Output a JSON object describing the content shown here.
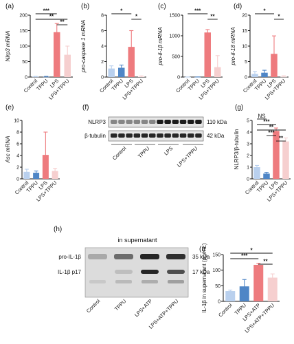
{
  "colors": {
    "control": "#b9d0ee",
    "tppu": "#4f86c6",
    "lps": "#ee7b7e",
    "lps_tppu": "#f6cfcf",
    "axis": "#111111"
  },
  "chart_data": [
    {
      "panel": "(a)",
      "type": "bar",
      "ylabel": "Nlrp3 mRNA",
      "categories": [
        "Control",
        "TPPU",
        "LPS",
        "LPS+TPPU"
      ],
      "values": [
        1,
        0.8,
        145,
        72
      ],
      "errors": [
        1.5,
        1.5,
        28,
        28
      ],
      "ylim": [
        0,
        200
      ],
      "yticks": [
        "0",
        "50",
        "100",
        "150",
        "200"
      ],
      "significance": [
        {
          "from": 0,
          "to": 2,
          "label": "***"
        },
        {
          "from": 0,
          "to": 3,
          "label": "**"
        },
        {
          "from": 2,
          "to": 3,
          "label": "**"
        }
      ]
    },
    {
      "panel": "(b)",
      "type": "bar",
      "ylabel": "pro-caspase 1 mRNA",
      "categories": [
        "Control",
        "TPPU",
        "LPS",
        "LPS+TPPU"
      ],
      "values": [
        1.1,
        1.2,
        3.9,
        0.05
      ],
      "errors": [
        0.35,
        0.35,
        2.1,
        0.1
      ],
      "ylim": [
        0,
        8
      ],
      "yticks": [
        "0",
        "2",
        "4",
        "6",
        "8"
      ],
      "significance": [
        {
          "from": 0,
          "to": 2,
          "label": "*"
        },
        {
          "from": 2,
          "to": 3,
          "label": "*"
        }
      ]
    },
    {
      "panel": "(c)",
      "type": "bar",
      "ylabel": "pro-il-1β mRNA",
      "categories": [
        "Control",
        "TPPU",
        "LPS",
        "LPS+TPPU"
      ],
      "values": [
        1,
        2,
        1080,
        240
      ],
      "errors": [
        2,
        2,
        70,
        280
      ],
      "ylim": [
        0,
        1500
      ],
      "yticks": [
        "0",
        "500",
        "1000",
        "1500"
      ],
      "significance": [
        {
          "from": 0,
          "to": 2,
          "label": "***"
        },
        {
          "from": 2,
          "to": 3,
          "label": "**"
        }
      ]
    },
    {
      "panel": "(d)",
      "type": "bar",
      "ylabel": "pro-il-18 mRNA",
      "categories": [
        "Control",
        "TPPU",
        "LPS",
        "LPS+TPPU"
      ],
      "values": [
        1,
        1.4,
        7.5,
        0.1
      ],
      "errors": [
        0.8,
        0.8,
        5.8,
        0.3
      ],
      "ylim": [
        0,
        20
      ],
      "yticks": [
        "0",
        "5",
        "10",
        "15",
        "20"
      ],
      "significance": [
        {
          "from": 0,
          "to": 2,
          "label": "*"
        },
        {
          "from": 2,
          "to": 3,
          "label": "*"
        }
      ]
    },
    {
      "panel": "(e)",
      "type": "bar",
      "ylabel": "Asc mRNA",
      "categories": [
        "Control",
        "TPPU",
        "LPS",
        "LPS+TPPU"
      ],
      "values": [
        1.2,
        1.05,
        4.1,
        1.35
      ],
      "errors": [
        0.45,
        0.3,
        3.9,
        0.45
      ],
      "ylim": [
        0,
        10
      ],
      "yticks": [
        "0",
        "2",
        "4",
        "6",
        "8",
        "10"
      ],
      "significance": []
    },
    {
      "panel": "(g)",
      "type": "bar",
      "ylabel": "NLRP3/β-tubulin",
      "categories": [
        "Control",
        "TPPU",
        "LPS",
        "LPS+TPPU"
      ],
      "values": [
        1.0,
        0.45,
        4.1,
        3.2
      ],
      "errors": [
        0.15,
        0.1,
        0.25,
        0.3
      ],
      "ylim": [
        0,
        5
      ],
      "yticks": [
        "0",
        "1",
        "2",
        "3",
        "4",
        "5"
      ],
      "significance": [
        {
          "from": 0,
          "to": 1,
          "label": "NS"
        },
        {
          "from": 0,
          "to": 2,
          "label": "***"
        },
        {
          "from": 0,
          "to": 3,
          "label": "**"
        },
        {
          "from": 1,
          "to": 2,
          "label": "***"
        },
        {
          "from": 2,
          "to": 3,
          "label": "**"
        }
      ]
    },
    {
      "panel": "(i)",
      "type": "bar",
      "ylabel": "IL-1β in supernatant (pg/mL)",
      "categories": [
        "Control",
        "TPPU",
        "LPS+ATP",
        "LPS+ATP+TPPU"
      ],
      "values": [
        33,
        48,
        117,
        76
      ],
      "errors": [
        3,
        22,
        5,
        12
      ],
      "ylim": [
        0,
        150
      ],
      "yticks": [
        "0",
        "50",
        "100",
        "150"
      ],
      "significance": [
        {
          "from": 0,
          "to": 3,
          "label": "*"
        },
        {
          "from": 0,
          "to": 2,
          "label": "***"
        },
        {
          "from": 2,
          "to": 3,
          "label": "**"
        }
      ]
    }
  ],
  "blot_f": {
    "panel": "(f)",
    "rows": [
      {
        "label": "NLRP3",
        "size": "110 kDa"
      },
      {
        "label": "β-tubulin",
        "size": "42 kDa"
      }
    ],
    "groups": [
      "Control",
      "TPPU",
      "LPS",
      "LPS+TPPU"
    ]
  },
  "blot_h": {
    "panel": "(h)",
    "title": "in supernatant",
    "rows": [
      {
        "label": "pro-IL-1β",
        "size": "35 kDa"
      },
      {
        "label": "IL-1β p17",
        "size": "17 kDa"
      }
    ],
    "lanes": [
      "Control",
      "TPPU",
      "LPS+ATP",
      "LPS+ATP+TPPU"
    ]
  }
}
